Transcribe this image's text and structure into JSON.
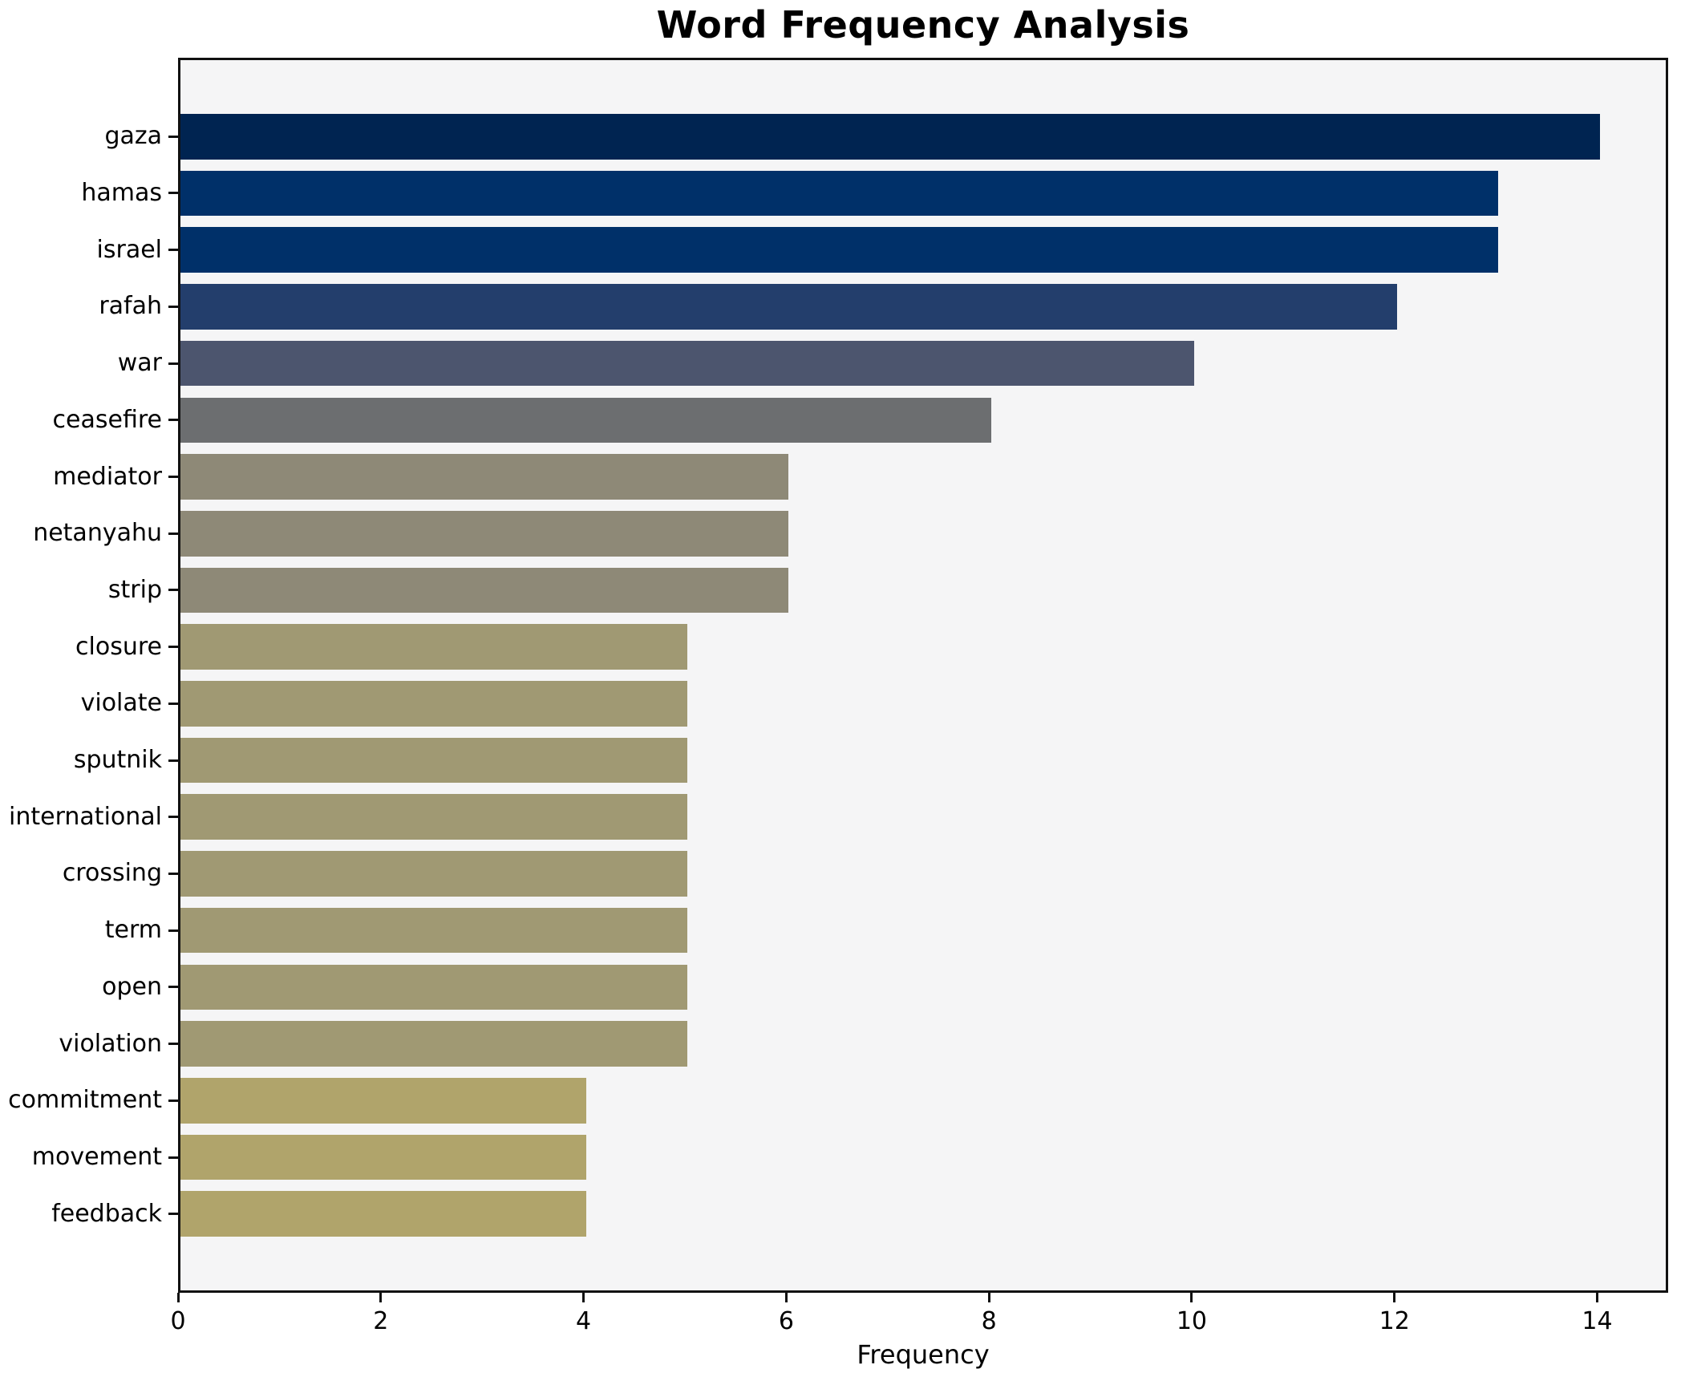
{
  "chart_data": {
    "type": "bar",
    "orientation": "horizontal",
    "title": "Word Frequency Analysis",
    "xlabel": "Frequency",
    "ylabel": "",
    "categories": [
      "gaza",
      "hamas",
      "israel",
      "rafah",
      "war",
      "ceasefire",
      "mediator",
      "netanyahu",
      "strip",
      "closure",
      "violate",
      "sputnik",
      "international",
      "crossing",
      "term",
      "open",
      "violation",
      "commitment",
      "movement",
      "feedback"
    ],
    "values": [
      14,
      13,
      13,
      12,
      10,
      8,
      6,
      6,
      6,
      5,
      5,
      5,
      5,
      5,
      5,
      5,
      5,
      4,
      4,
      4
    ],
    "bar_colors": [
      "#002451",
      "#003069",
      "#003069",
      "#233e6c",
      "#4c556e",
      "#6c6e70",
      "#8e8977",
      "#8e8977",
      "#8e8977",
      "#a09973",
      "#a09973",
      "#a09973",
      "#a09973",
      "#a09973",
      "#a09973",
      "#a09973",
      "#a09973",
      "#b0a46b",
      "#b0a46b",
      "#b0a46b"
    ],
    "xticks": [
      0,
      2,
      4,
      6,
      8,
      10,
      12,
      14
    ],
    "xlim": [
      0,
      14.7
    ],
    "grid": false,
    "legend": false,
    "bar_height_fraction": 0.8,
    "colors": {
      "figure_background": "#ffffff",
      "axes_background": "#f5f5f6",
      "spine": "#111111",
      "text": "#000000"
    }
  }
}
